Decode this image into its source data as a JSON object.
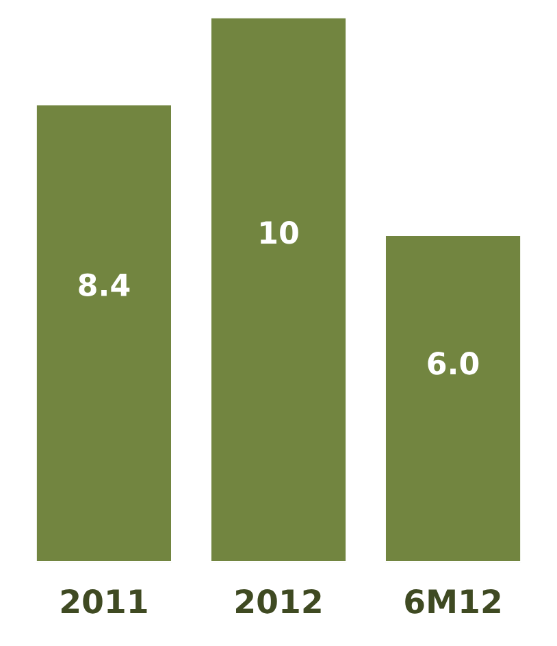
{
  "chart_data": {
    "type": "bar",
    "categories": [
      "2011",
      "2012",
      "6M12"
    ],
    "values": [
      8.4,
      10,
      6.0
    ],
    "value_labels": [
      "8.4",
      "10",
      "6.0"
    ],
    "color": "#728540",
    "grid": false,
    "legend": false
  }
}
